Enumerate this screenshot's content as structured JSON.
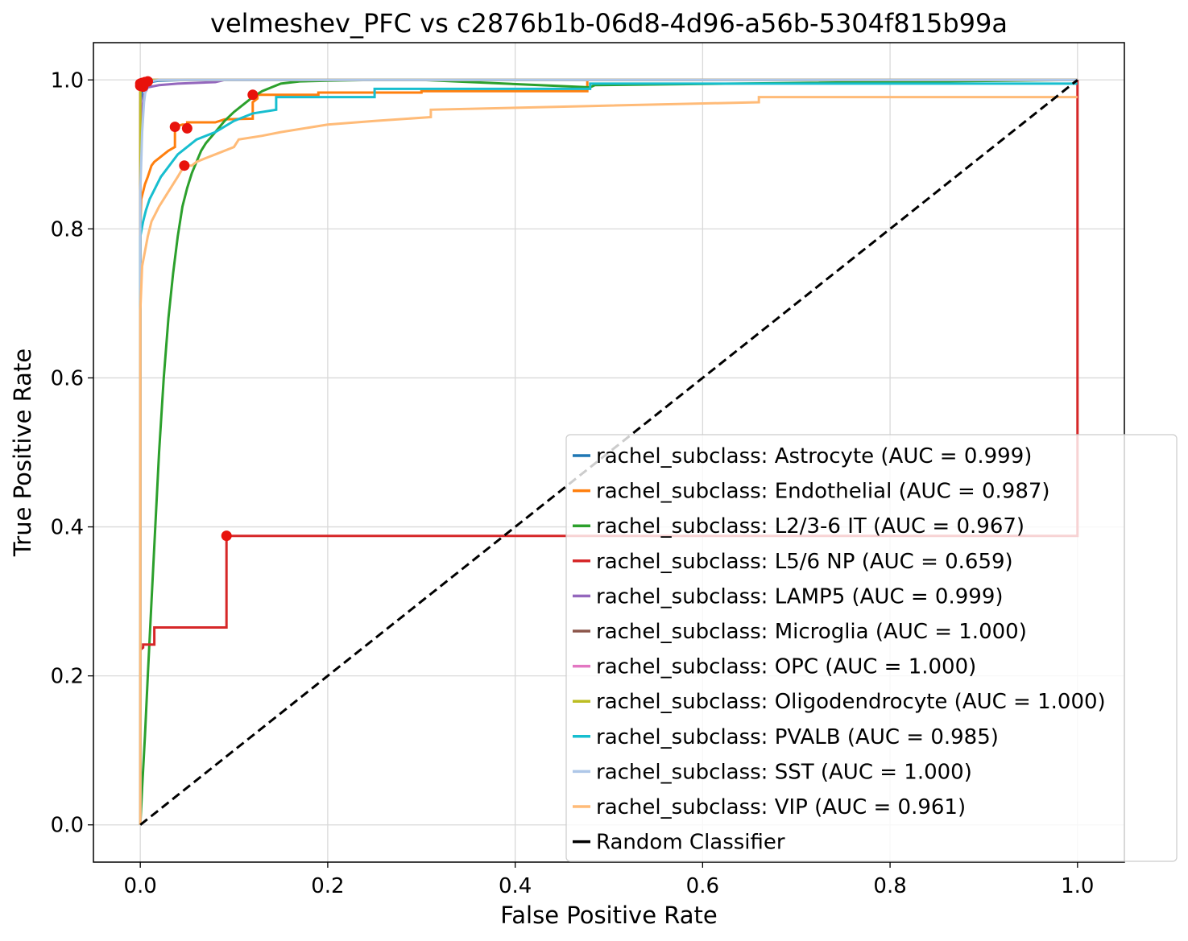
{
  "chart_data": {
    "type": "line",
    "title": "velmeshev_PFC vs c2876b1b-06d8-4d96-a56b-5304f815b99a",
    "xlabel": "False Positive Rate",
    "ylabel": "True Positive Rate",
    "xlim": [
      -0.05,
      1.05
    ],
    "ylim": [
      -0.05,
      1.05
    ],
    "xticks": [
      0.0,
      0.2,
      0.4,
      0.6,
      0.8,
      1.0
    ],
    "xtick_labels": [
      "0.0",
      "0.2",
      "0.4",
      "0.6",
      "0.8",
      "1.0"
    ],
    "yticks": [
      0.0,
      0.2,
      0.4,
      0.6,
      0.8,
      1.0
    ],
    "ytick_labels": [
      "0.0",
      "0.2",
      "0.4",
      "0.6",
      "0.8",
      "1.0"
    ],
    "grid": true,
    "legend_position": "lower right",
    "series": [
      {
        "name": "rachel_subclass: Astrocyte (AUC = 0.999)",
        "color": "#1f77b4",
        "x": [
          0,
          0,
          0.002,
          0.004,
          0.006,
          0.01,
          0.02,
          0.05,
          1.0
        ],
        "y": [
          0,
          0.97,
          0.985,
          0.99,
          0.995,
          0.997,
          0.999,
          1.0,
          1.0
        ],
        "marker": [
          0.0,
          0.992
        ]
      },
      {
        "name": "rachel_subclass: Endothelial (AUC = 0.987)",
        "color": "#ff7f0e",
        "x": [
          0,
          0,
          0.001,
          0.003,
          0.005,
          0.008,
          0.012,
          0.015,
          0.02,
          0.025,
          0.03,
          0.037,
          0.037,
          0.045,
          0.05,
          0.05,
          0.08,
          0.09,
          0.12,
          0.12,
          0.125,
          0.125,
          0.19,
          0.19,
          0.3,
          0.3,
          0.477,
          0.477,
          1.0
        ],
        "y": [
          0,
          0.8,
          0.84,
          0.85,
          0.86,
          0.87,
          0.885,
          0.89,
          0.895,
          0.9,
          0.905,
          0.91,
          0.937,
          0.94,
          0.94,
          0.943,
          0.943,
          0.947,
          0.948,
          0.97,
          0.975,
          0.98,
          0.98,
          0.983,
          0.983,
          0.985,
          0.985,
          1.0,
          1.0
        ],
        "marker": [
          0.037,
          0.937
        ]
      },
      {
        "name": "rachel_subclass: L2/3-6 IT (AUC = 0.967)",
        "color": "#2ca02c",
        "x": [
          0,
          0.002,
          0.005,
          0.008,
          0.012,
          0.016,
          0.02,
          0.025,
          0.03,
          0.035,
          0.04,
          0.045,
          0.05,
          0.055,
          0.06,
          0.065,
          0.07,
          0.08,
          0.09,
          0.1,
          0.11,
          0.12,
          0.13,
          0.14,
          0.15,
          0.17,
          0.2,
          0.25,
          0.3,
          0.48,
          0.485,
          1.0
        ],
        "y": [
          0,
          0.05,
          0.12,
          0.2,
          0.3,
          0.4,
          0.5,
          0.6,
          0.68,
          0.74,
          0.79,
          0.83,
          0.855,
          0.875,
          0.89,
          0.905,
          0.915,
          0.93,
          0.945,
          0.957,
          0.967,
          0.977,
          0.985,
          0.99,
          0.995,
          0.998,
          0.999,
          1.0,
          1.0,
          0.99,
          0.993,
          1.0
        ],
        "marker": [
          0.12,
          0.98
        ]
      },
      {
        "name": "rachel_subclass: L5/6 NP (AUC = 0.659)",
        "color": "#d62728",
        "x": [
          0,
          0,
          0.003,
          0.003,
          0.015,
          0.015,
          0.032,
          0.092,
          0.092,
          1.0,
          1.0
        ],
        "y": [
          0,
          0.235,
          0.238,
          0.242,
          0.242,
          0.265,
          0.265,
          0.265,
          0.388,
          0.388,
          1.0
        ],
        "marker": [
          0.092,
          0.388
        ]
      },
      {
        "name": "rachel_subclass: LAMP5 (AUC = 0.999)",
        "color": "#9467bd",
        "x": [
          0,
          0,
          0.002,
          0.004,
          0.008,
          0.02,
          0.04,
          0.08,
          0.09,
          1.0
        ],
        "y": [
          0,
          0.93,
          0.96,
          0.98,
          0.99,
          0.993,
          0.995,
          0.997,
          1.0,
          1.0
        ],
        "marker": [
          0.003,
          0.991
        ]
      },
      {
        "name": "rachel_subclass: Microglia (AUC = 1.000)",
        "color": "#8c564b",
        "x": [
          0,
          0,
          0.002,
          1.0
        ],
        "y": [
          0,
          0.99,
          1.0,
          1.0
        ],
        "marker": [
          0.0,
          0.995
        ]
      },
      {
        "name": "rachel_subclass: OPC (AUC = 1.000)",
        "color": "#e377c2",
        "x": [
          0,
          0,
          0.003,
          0.006,
          1.0
        ],
        "y": [
          0,
          0.985,
          0.995,
          1.0,
          1.0
        ],
        "marker": [
          0.002,
          0.996
        ]
      },
      {
        "name": "rachel_subclass: Oligodendrocyte (AUC = 1.000)",
        "color": "#bcbd22",
        "x": [
          0,
          0,
          0.004,
          1.0
        ],
        "y": [
          0,
          0.996,
          1.0,
          1.0
        ],
        "marker": [
          0.005,
          0.997
        ]
      },
      {
        "name": "rachel_subclass: PVALB (AUC = 0.985)",
        "color": "#17becf",
        "x": [
          0,
          0,
          0.003,
          0.006,
          0.01,
          0.014,
          0.018,
          0.022,
          0.028,
          0.034,
          0.04,
          0.05,
          0.06,
          0.08,
          0.1,
          0.12,
          0.145,
          0.145,
          0.25,
          0.25,
          0.48,
          0.48,
          1.0
        ],
        "y": [
          0,
          0.79,
          0.81,
          0.825,
          0.84,
          0.85,
          0.86,
          0.87,
          0.88,
          0.89,
          0.9,
          0.91,
          0.92,
          0.93,
          0.945,
          0.955,
          0.96,
          0.977,
          0.977,
          0.988,
          0.988,
          0.995,
          0.995
        ],
        "marker": [
          0.05,
          0.935
        ]
      },
      {
        "name": "rachel_subclass: SST (AUC = 1.000)",
        "color": "#aec7e8",
        "x": [
          0,
          0,
          0.002,
          0.004,
          0.006,
          0.01,
          0.02,
          1.0
        ],
        "y": [
          0,
          0.85,
          0.93,
          0.97,
          0.99,
          0.998,
          1.0,
          1.0
        ],
        "marker": [
          0.008,
          0.998
        ]
      },
      {
        "name": "rachel_subclass: VIP (AUC = 0.961)",
        "color": "#ffbb78",
        "x": [
          0,
          0,
          0.002,
          0.005,
          0.008,
          0.012,
          0.016,
          0.02,
          0.025,
          0.03,
          0.035,
          0.04,
          0.047,
          0.055,
          0.06,
          0.07,
          0.08,
          0.1,
          0.105,
          0.13,
          0.15,
          0.2,
          0.25,
          0.31,
          0.31,
          0.48,
          0.66,
          0.66,
          1.0
        ],
        "y": [
          0,
          0.69,
          0.75,
          0.77,
          0.79,
          0.81,
          0.82,
          0.83,
          0.84,
          0.85,
          0.86,
          0.87,
          0.885,
          0.885,
          0.89,
          0.895,
          0.9,
          0.91,
          0.92,
          0.925,
          0.93,
          0.94,
          0.945,
          0.95,
          0.96,
          0.965,
          0.97,
          0.977,
          0.977
        ],
        "marker": [
          0.047,
          0.885
        ]
      },
      {
        "name": "Random Classifier",
        "color": "#000000",
        "dashed": true,
        "x": [
          0,
          1
        ],
        "y": [
          0,
          1
        ]
      }
    ]
  }
}
